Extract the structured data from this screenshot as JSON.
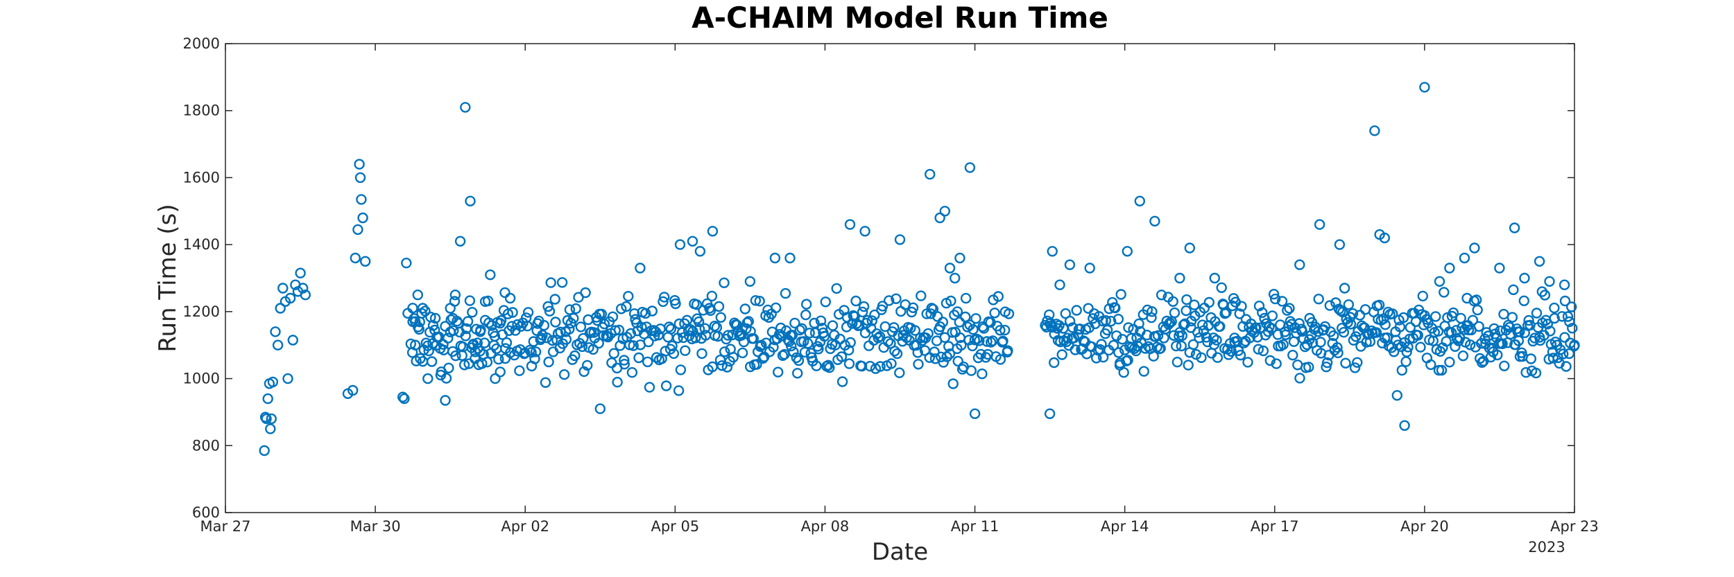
{
  "chart_data": {
    "type": "scatter",
    "title": "A-CHAIM Model Run Time",
    "xlabel": "Date",
    "ylabel": "Run Time (s)",
    "x_year_label": "2023",
    "x_unit": "days since Mar 27 2023",
    "xlim": [
      0,
      27
    ],
    "ylim": [
      600,
      2000
    ],
    "y_ticks": [
      600,
      800,
      1000,
      1200,
      1400,
      1600,
      1800,
      2000
    ],
    "x_ticks": [
      {
        "value": 0,
        "label": "Mar 27"
      },
      {
        "value": 3,
        "label": "Mar 30"
      },
      {
        "value": 6,
        "label": "Apr 02"
      },
      {
        "value": 9,
        "label": "Apr 05"
      },
      {
        "value": 12,
        "label": "Apr 08"
      },
      {
        "value": 15,
        "label": "Apr 11"
      },
      {
        "value": 18,
        "label": "Apr 14"
      },
      {
        "value": 21,
        "label": "Apr 17"
      },
      {
        "value": 24,
        "label": "Apr 20"
      },
      {
        "value": 27,
        "label": "Apr 23"
      }
    ],
    "grid": false,
    "marker": "open-circle",
    "marker_color": "#0072BD",
    "series": [
      {
        "name": "",
        "x": [
          0.78,
          0.8,
          0.82,
          0.85,
          0.88,
          0.9,
          0.92,
          0.95,
          1.0,
          1.05,
          1.1,
          1.15,
          1.2,
          1.25,
          1.3,
          1.35,
          1.4,
          1.45,
          1.5,
          1.55,
          1.6,
          2.45,
          2.55,
          2.6,
          2.65,
          2.68,
          2.7,
          2.72,
          2.75,
          2.8,
          3.55,
          3.58,
          3.62,
          3.65,
          3.75,
          3.8,
          3.85,
          3.9,
          3.95,
          4.05,
          4.15,
          4.2,
          4.3,
          4.4,
          4.5,
          4.55,
          4.6,
          4.7,
          4.8,
          4.9,
          4.95,
          5.0,
          5.05,
          5.1,
          5.2,
          5.3,
          5.4,
          5.5,
          5.6,
          5.7,
          7.5,
          8.3,
          9.1,
          9.35,
          9.5,
          9.75,
          10.5,
          11.0,
          11.3,
          12.5,
          12.8,
          13.5,
          14.1,
          14.3,
          14.4,
          14.5,
          14.6,
          14.65,
          14.7,
          14.9,
          15.0,
          16.5,
          16.55,
          16.7,
          16.9,
          17.3,
          17.9,
          18.05,
          18.3,
          18.6,
          19.1,
          19.3,
          19.8,
          20.0,
          20.2,
          21.5,
          21.9,
          22.3,
          23.0,
          23.1,
          23.2,
          23.45,
          23.6,
          24.0,
          24.3,
          24.5,
          24.8,
          25.0,
          25.5,
          25.8,
          26.0,
          26.3,
          26.5,
          26.8,
          26.9,
          27.0,
          24.85,
          25.9,
          26.6,
          21.7,
          22.4
        ],
        "y": [
          785,
          885,
          880,
          940,
          985,
          850,
          880,
          990,
          1140,
          1100,
          1210,
          1270,
          1230,
          1000,
          1240,
          1115,
          1280,
          1260,
          1315,
          1270,
          1250,
          955,
          965,
          1360,
          1445,
          1640,
          1600,
          1535,
          1480,
          1350,
          945,
          940,
          1345,
          1195,
          1170,
          1100,
          1250,
          1060,
          1210,
          1000,
          1105,
          1180,
          1090,
          935,
          1210,
          1180,
          1250,
          1410,
          1810,
          1530,
          1100,
          1080,
          1090,
          1140,
          1230,
          1310,
          1000,
          1020,
          1060,
          1240,
          910,
          1330,
          1400,
          1410,
          1380,
          1440,
          1290,
          1360,
          1360,
          1460,
          1440,
          1415,
          1610,
          1480,
          1500,
          1330,
          1300,
          1200,
          1360,
          1630,
          895,
          895,
          1380,
          1280,
          1340,
          1330,
          1040,
          1380,
          1530,
          1470,
          1300,
          1390,
          1300,
          1090,
          1110,
          1340,
          1460,
          1400,
          1740,
          1430,
          1420,
          950,
          860,
          1870,
          1290,
          1330,
          1360,
          1390,
          1330,
          1450,
          1300,
          1350,
          1290,
          1280,
          1170,
          1100,
          1240,
          1140,
          1180,
          1180,
          1270
        ],
        "cloud": {
          "description": "dense band of repeated runs",
          "segments": [
            {
              "x_range": [
                3.7,
                15.7
              ],
              "y_center": 1130,
              "y_spread": 110
            },
            {
              "x_range": [
                16.4,
                27.0
              ],
              "y_center": 1130,
              "y_spread": 100
            }
          ]
        }
      }
    ]
  }
}
